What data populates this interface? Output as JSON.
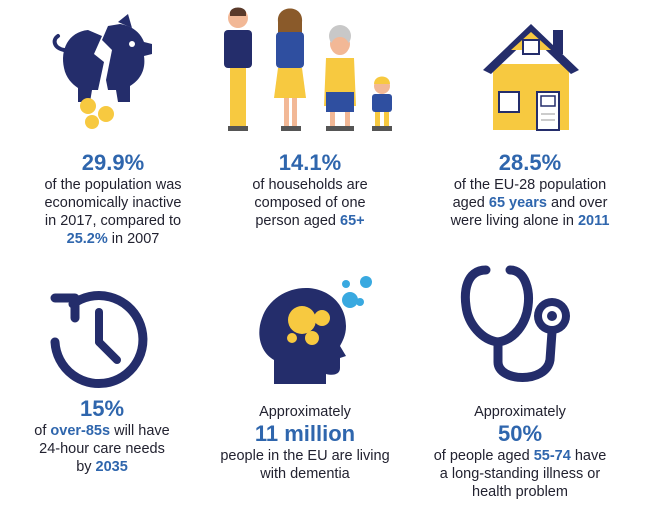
{
  "colors": {
    "navy": "#242d6b",
    "accent_blue": "#2f66ad",
    "yellow": "#f7c940",
    "light_blue": "#39a9e0",
    "text": "#222230"
  },
  "stats": [
    {
      "icon": "broken-piggy-bank-icon",
      "figure": "29.9%",
      "line1": "of the population was",
      "line2": "economically inactive",
      "line3": "in 2017, compared to",
      "line4_hl": "25.2%",
      "line4_rest": " in 2007"
    },
    {
      "icon": "family-icon",
      "figure": "14.1%",
      "line1": "of households are",
      "line2": "composed of one",
      "line3_pre": "person aged ",
      "line3_hl": "65+"
    },
    {
      "icon": "house-icon",
      "figure": "28.5%",
      "line1": "of the EU-28 population",
      "line2_pre": "aged ",
      "line2_hl": "65 years",
      "line2_post": " and over",
      "line3_pre": "were living alone in ",
      "line3_hl": "2011"
    },
    {
      "icon": "clock-icon",
      "figure": "15%",
      "line1_pre": "of ",
      "line1_hl": "over-85s",
      "line1_post": " will have",
      "line2": "24-hour care needs",
      "line3_pre": "by ",
      "line3_hl": "2035"
    },
    {
      "icon": "head-dementia-icon",
      "pre": "Approximately",
      "figure": "11 million",
      "line1": "people in the EU are living",
      "line2": "with dementia"
    },
    {
      "icon": "stethoscope-icon",
      "pre": "Approximately",
      "figure": "50%",
      "line1_pre": "of people aged ",
      "line1_hl": "55-74",
      "line1_post": " have",
      "line2": "a long-standing illness or",
      "line3": "health problem"
    }
  ]
}
